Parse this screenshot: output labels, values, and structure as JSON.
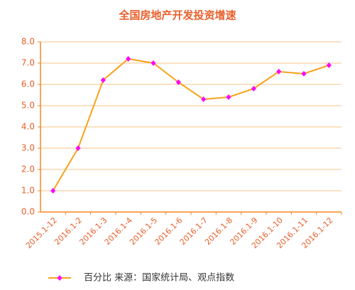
{
  "chart_data": {
    "type": "line",
    "title": "全国房地产开发投资增速",
    "categories": [
      "2015.1-12",
      "2016.1-2",
      "2016.1-3",
      "2016.1-4",
      "2016.1-5",
      "2016.1-6",
      "2016.1-7",
      "2016.1-8",
      "2016.1-9",
      "2016.1-10",
      "2016.1-11",
      "2016.1-12"
    ],
    "series": [
      {
        "name": "百分比 来源：国家统计局、观点指数",
        "color": "#f7a21b",
        "marker_color": "#ff00ff",
        "values": [
          1.0,
          3.0,
          6.2,
          7.2,
          7.0,
          6.1,
          5.3,
          5.4,
          5.8,
          6.6,
          6.5,
          6.9
        ]
      }
    ],
    "ylim": [
      0,
      8
    ],
    "yticks": [
      {
        "value": 0,
        "label": "0.0"
      },
      {
        "value": 1,
        "label": "1.0"
      },
      {
        "value": 2,
        "label": "2.0"
      },
      {
        "value": 3,
        "label": "3.0"
      },
      {
        "value": 4,
        "label": "4.0"
      },
      {
        "value": 5,
        "label": "5.0"
      },
      {
        "value": 6,
        "label": "6.0"
      },
      {
        "value": 7,
        "label": "7.0"
      },
      {
        "value": 8,
        "label": "8.0"
      }
    ],
    "grid": true,
    "legend": "bottom"
  }
}
